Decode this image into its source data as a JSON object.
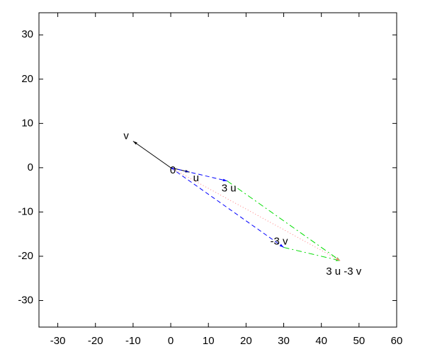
{
  "chart_data": {
    "type": "vector",
    "xlim": [
      -35,
      60
    ],
    "ylim": [
      -36,
      35
    ],
    "xticks": [
      -30,
      -20,
      -10,
      0,
      10,
      20,
      30,
      40,
      50,
      60
    ],
    "yticks": [
      -30,
      -20,
      -10,
      0,
      10,
      20,
      30
    ],
    "segments": [
      {
        "x": [
          0,
          5
        ],
        "y": [
          0,
          -1
        ],
        "color": "#000000",
        "style": "solid"
      },
      {
        "x": [
          0,
          -10
        ],
        "y": [
          0,
          6
        ],
        "color": "#000000",
        "style": "solid"
      },
      {
        "x": [
          0,
          15
        ],
        "y": [
          0,
          -3
        ],
        "color": "#0000ff",
        "style": "dashed"
      },
      {
        "x": [
          0,
          30
        ],
        "y": [
          0,
          -18
        ],
        "color": "#0000ff",
        "style": "dashed"
      },
      {
        "x": [
          15,
          45
        ],
        "y": [
          -3,
          -21
        ],
        "color": "#00dd00",
        "style": "dashdot"
      },
      {
        "x": [
          30,
          45
        ],
        "y": [
          -18,
          -21
        ],
        "color": "#00dd00",
        "style": "dashdot"
      },
      {
        "x": [
          0,
          45
        ],
        "y": [
          0,
          -21
        ],
        "color": "#ff8080",
        "style": "dotted"
      }
    ],
    "points": [
      {
        "label": "0",
        "x": 0,
        "y": 0
      },
      {
        "label": "u",
        "x": 5,
        "y": -1
      },
      {
        "label": "v",
        "x": -10,
        "y": 6
      },
      {
        "label": "3 u",
        "x": 15,
        "y": -3
      },
      {
        "label": "-3 v",
        "x": 30,
        "y": -18
      },
      {
        "label": "3 u -3 v",
        "x": 45,
        "y": -21
      }
    ]
  }
}
